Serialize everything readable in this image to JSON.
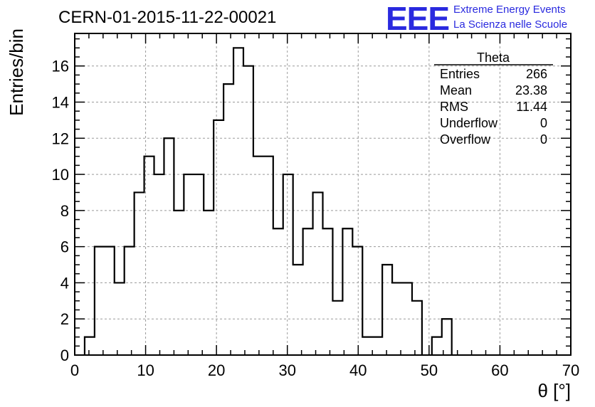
{
  "chart_data": {
    "type": "histogram",
    "title": "CERN-01-2015-11-22-00021",
    "xlabel": "θ [°]",
    "ylabel": "Entries/bin",
    "xlim": [
      0,
      70
    ],
    "ylim": [
      0,
      17.8
    ],
    "x_ticks": [
      0,
      10,
      20,
      30,
      40,
      50,
      60,
      70
    ],
    "y_ticks": [
      0,
      2,
      4,
      6,
      8,
      10,
      12,
      14,
      16
    ],
    "grid": true,
    "bin_width": 1.4,
    "bin_start": 1.4,
    "values": [
      1,
      6,
      6,
      4,
      6,
      9,
      11,
      10,
      12,
      8,
      10,
      10,
      8,
      13,
      15,
      17,
      16,
      11,
      11,
      7,
      10,
      5,
      7,
      9,
      7,
      3,
      7,
      6,
      1,
      1,
      5,
      4,
      4,
      3,
      0,
      1,
      2
    ],
    "stats": {
      "title": "Theta",
      "rows": [
        {
          "label": "Entries",
          "value": "266"
        },
        {
          "label": "Mean",
          "value": "23.38"
        },
        {
          "label": "RMS",
          "value": "11.44"
        },
        {
          "label": "Underflow",
          "value": "0"
        },
        {
          "label": "Overflow",
          "value": "0"
        }
      ]
    }
  },
  "logo": {
    "big": "EEE",
    "line1": "Extreme Energy Events",
    "line2": "La Scienza nelle Scuole",
    "color": "#2a2adf"
  }
}
